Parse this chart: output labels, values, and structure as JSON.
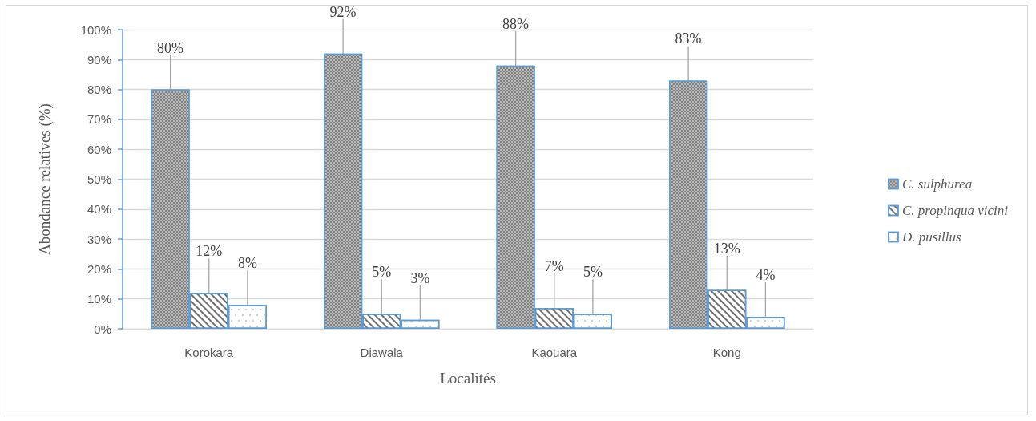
{
  "chart_data": {
    "type": "bar",
    "xlabel": "Localités",
    "ylabel": "Abondance relatives (%)",
    "categories": [
      "Korokara",
      "Diawala",
      "Kaouara",
      "Kong"
    ],
    "series": [
      {
        "name": "C. sulphurea",
        "color": "#7f7f7f",
        "values": [
          80,
          92,
          88,
          83
        ],
        "value_labels": [
          "80%",
          "92%",
          "88%",
          "83%"
        ]
      },
      {
        "name": "C. propinqua vicini",
        "color": "#ffffff",
        "values": [
          12,
          5,
          7,
          13
        ],
        "value_labels": [
          "12%",
          "5%",
          "7%",
          "13%"
        ]
      },
      {
        "name": "D. pusillus",
        "color": "#ffffff",
        "values": [
          8,
          3,
          5,
          4
        ],
        "value_labels": [
          "8%",
          "3%",
          "5%",
          "4%"
        ]
      }
    ],
    "ylim": [
      0,
      100
    ],
    "yticks": [
      {
        "value": 0,
        "label": "0%"
      },
      {
        "value": 10,
        "label": "10%"
      },
      {
        "value": 20,
        "label": "20%"
      },
      {
        "value": 30,
        "label": "30%"
      },
      {
        "value": 40,
        "label": "40%"
      },
      {
        "value": 50,
        "label": "50%"
      },
      {
        "value": 60,
        "label": "60%"
      },
      {
        "value": 70,
        "label": "70%"
      },
      {
        "value": 80,
        "label": "80%"
      },
      {
        "value": 90,
        "label": "90%"
      },
      {
        "value": 100,
        "label": "100%"
      }
    ],
    "grid": "y",
    "legend": "right"
  }
}
